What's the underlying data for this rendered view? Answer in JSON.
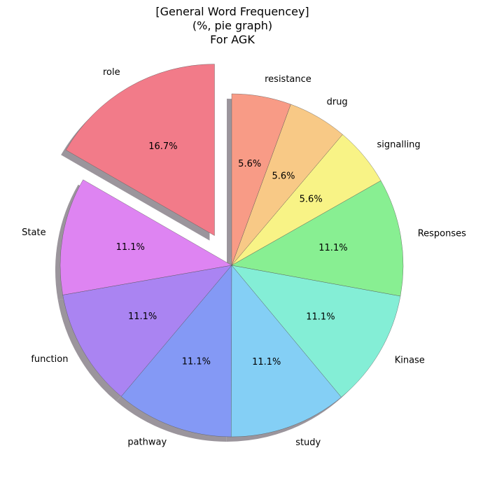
{
  "chart_data": {
    "type": "pie",
    "title_lines": [
      "[General Word Frequencey]",
      "(%, pie graph)",
      "For AGK"
    ],
    "categories": [
      "role",
      "State",
      "function",
      "pathway",
      "study",
      "Kinase",
      "Responses",
      "signalling",
      "drug",
      "resistance"
    ],
    "values": [
      16.7,
      11.1,
      11.1,
      11.1,
      11.1,
      11.1,
      11.1,
      5.6,
      5.6,
      5.6
    ],
    "labels_pct": [
      "16.7%",
      "11.1%",
      "11.1%",
      "11.1%",
      "11.1%",
      "11.1%",
      "11.1%",
      "5.6%",
      "5.6%",
      "5.6%"
    ],
    "colors": [
      "#f27b89",
      "#de84f2",
      "#aa84f2",
      "#8499f5",
      "#84cff5",
      "#84eed6",
      "#88ef92",
      "#f8f386",
      "#f8c986",
      "#f89b86"
    ],
    "exploded": [
      "role"
    ],
    "start_angle_deg": 90,
    "direction": "counterclockwise",
    "shadow": true,
    "legend": "none"
  }
}
